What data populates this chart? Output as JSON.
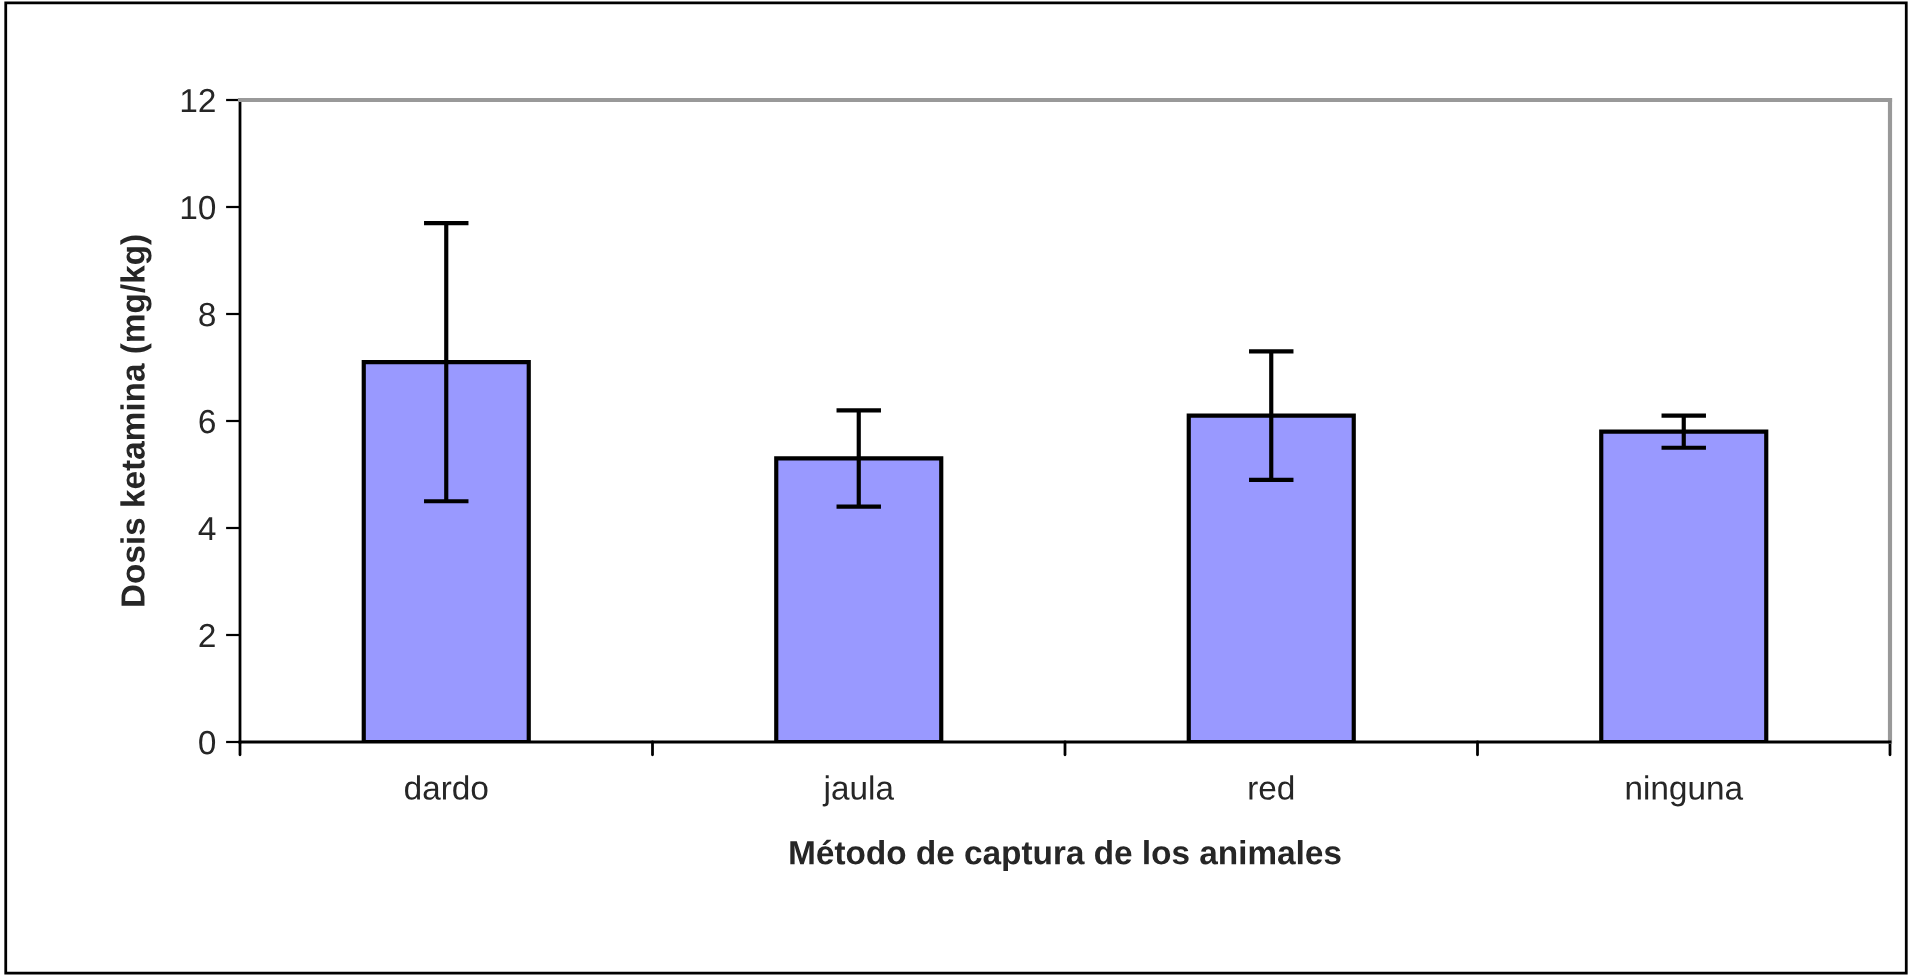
{
  "chart_data": {
    "type": "bar",
    "xlabel": "Método de captura de los animales",
    "ylabel": "Dosis ketamina (mg/kg)",
    "categories": [
      "dardo",
      "jaula",
      "red",
      "ninguna"
    ],
    "values": [
      7.1,
      5.3,
      6.1,
      5.8
    ],
    "errors": [
      2.6,
      0.9,
      1.2,
      0.3
    ],
    "color": "#9999ff",
    "ylim": [
      0,
      12
    ],
    "yticks": [
      0,
      2,
      4,
      6,
      8,
      10,
      12
    ],
    "grid": false,
    "legend": false
  }
}
